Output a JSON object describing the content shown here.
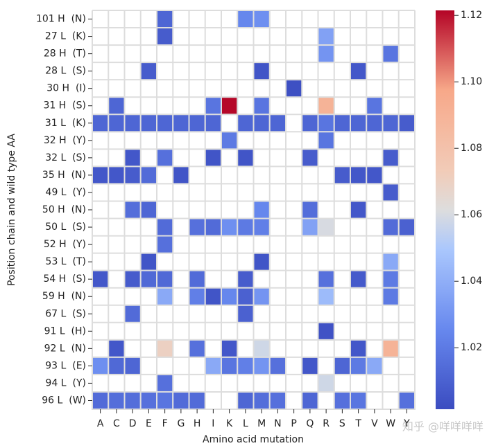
{
  "chart_data": {
    "type": "heatmap",
    "xlabel": "Amino acid mutation",
    "ylabel": "Position chain and wild type AA",
    "watermark": "知乎 @咩咩咩咩",
    "colormap": "coolwarm",
    "clim": [
      1.0015,
      1.1215
    ],
    "colorbar_ticks": [
      1.02,
      1.04,
      1.06,
      1.08,
      {
        "value": 1.1,
        "label": "1.10"
      },
      1.12
    ],
    "columns": [
      "A",
      "C",
      "D",
      "E",
      "F",
      "G",
      "H",
      "I",
      "K",
      "L",
      "M",
      "N",
      "P",
      "Q",
      "R",
      "S",
      "T",
      "V",
      "W",
      "Y"
    ],
    "rows": [
      "101 H  (N)",
      "27 L  (K)",
      "28 H  (T)",
      "28 L  (S)",
      "30 H  (I)",
      "31 H  (S)",
      "31 L  (K)",
      "32 H  (Y)",
      "32 L  (S)",
      "35 H  (N)",
      "49 L  (Y)",
      "50 H  (N)",
      "50 L  (S)",
      "52 H  (Y)",
      "53 L  (T)",
      "54 H  (S)",
      "59 H  (N)",
      "67 L  (S)",
      "91 L  (H)",
      "92 L  (N)",
      "93 L  (E)",
      "94 L  (Y)",
      "96 L  (W)"
    ],
    "values": [
      [
        null,
        null,
        null,
        null,
        1.012,
        null,
        null,
        null,
        null,
        1.025,
        1.028,
        null,
        null,
        null,
        null,
        null,
        null,
        null,
        null,
        null
      ],
      [
        null,
        null,
        null,
        null,
        1.008,
        null,
        null,
        null,
        null,
        null,
        null,
        null,
        null,
        null,
        1.035,
        null,
        null,
        null,
        null,
        null
      ],
      [
        null,
        null,
        null,
        null,
        null,
        null,
        null,
        null,
        null,
        null,
        null,
        null,
        null,
        null,
        1.03,
        null,
        null,
        null,
        1.018,
        null
      ],
      [
        null,
        null,
        null,
        1.008,
        null,
        null,
        null,
        null,
        null,
        null,
        1.005,
        null,
        null,
        null,
        null,
        null,
        1.006,
        null,
        null,
        null
      ],
      [
        null,
        null,
        null,
        null,
        null,
        null,
        null,
        null,
        null,
        null,
        null,
        null,
        1.003,
        null,
        null,
        null,
        null,
        null,
        null,
        null
      ],
      [
        null,
        1.012,
        null,
        null,
        null,
        null,
        null,
        1.018,
        1.121,
        null,
        1.018,
        null,
        null,
        null,
        1.09,
        null,
        null,
        1.018,
        null,
        null
      ],
      [
        1.012,
        1.012,
        1.012,
        1.012,
        1.012,
        1.012,
        1.012,
        1.012,
        null,
        1.012,
        1.012,
        1.012,
        null,
        1.012,
        1.018,
        1.012,
        1.012,
        1.012,
        1.012,
        1.008
      ],
      [
        null,
        null,
        null,
        null,
        null,
        null,
        null,
        null,
        1.02,
        null,
        null,
        null,
        null,
        null,
        1.018,
        null,
        null,
        null,
        null,
        null
      ],
      [
        null,
        null,
        1.006,
        null,
        1.016,
        null,
        null,
        1.005,
        null,
        1.005,
        null,
        null,
        null,
        1.008,
        null,
        null,
        null,
        null,
        1.008,
        null
      ],
      [
        1.006,
        1.006,
        1.008,
        1.014,
        null,
        1.005,
        null,
        null,
        null,
        null,
        null,
        null,
        null,
        null,
        null,
        1.008,
        1.006,
        1.006,
        null,
        null
      ],
      [
        null,
        null,
        null,
        null,
        null,
        null,
        null,
        null,
        null,
        null,
        null,
        null,
        null,
        null,
        null,
        null,
        null,
        null,
        1.008,
        null
      ],
      [
        null,
        null,
        1.015,
        1.012,
        null,
        null,
        null,
        null,
        null,
        null,
        1.025,
        null,
        null,
        1.015,
        null,
        null,
        1.006,
        null,
        null,
        null
      ],
      [
        null,
        null,
        null,
        null,
        1.014,
        null,
        1.016,
        1.014,
        1.028,
        1.02,
        1.022,
        null,
        null,
        1.035,
        1.06,
        null,
        null,
        null,
        1.014,
        1.01
      ],
      [
        null,
        null,
        null,
        null,
        1.016,
        null,
        null,
        null,
        null,
        null,
        null,
        null,
        null,
        null,
        null,
        null,
        null,
        null,
        null,
        null
      ],
      [
        null,
        null,
        null,
        1.005,
        null,
        null,
        null,
        null,
        null,
        null,
        1.005,
        null,
        null,
        null,
        null,
        null,
        null,
        null,
        1.038,
        null
      ],
      [
        1.006,
        null,
        1.008,
        1.013,
        1.013,
        null,
        1.014,
        null,
        null,
        1.008,
        null,
        null,
        null,
        null,
        1.016,
        null,
        1.007,
        null,
        1.02,
        null
      ],
      [
        null,
        null,
        null,
        null,
        1.038,
        null,
        1.022,
        1.005,
        1.025,
        1.01,
        1.03,
        null,
        null,
        null,
        1.045,
        null,
        null,
        null,
        1.02,
        null
      ],
      [
        null,
        null,
        1.014,
        null,
        null,
        null,
        null,
        null,
        null,
        1.01,
        null,
        null,
        null,
        null,
        null,
        null,
        null,
        null,
        null,
        null
      ],
      [
        null,
        null,
        null,
        null,
        null,
        null,
        null,
        null,
        null,
        null,
        null,
        null,
        null,
        null,
        1.004,
        null,
        null,
        null,
        null,
        null
      ],
      [
        null,
        1.006,
        null,
        null,
        1.07,
        null,
        1.016,
        null,
        1.006,
        null,
        1.058,
        null,
        null,
        null,
        null,
        null,
        1.006,
        null,
        1.09,
        null
      ],
      [
        1.028,
        1.013,
        1.012,
        null,
        null,
        null,
        null,
        1.038,
        1.018,
        1.022,
        1.03,
        1.016,
        null,
        1.006,
        null,
        1.012,
        1.02,
        1.038,
        null,
        null
      ],
      [
        null,
        null,
        null,
        null,
        1.016,
        null,
        null,
        null,
        null,
        null,
        null,
        null,
        null,
        null,
        1.058,
        null,
        null,
        null,
        null,
        null
      ],
      [
        1.014,
        1.015,
        1.015,
        1.016,
        1.018,
        1.014,
        1.014,
        null,
        null,
        1.012,
        1.015,
        1.016,
        null,
        1.012,
        null,
        1.016,
        1.018,
        null,
        null,
        1.016
      ]
    ]
  }
}
